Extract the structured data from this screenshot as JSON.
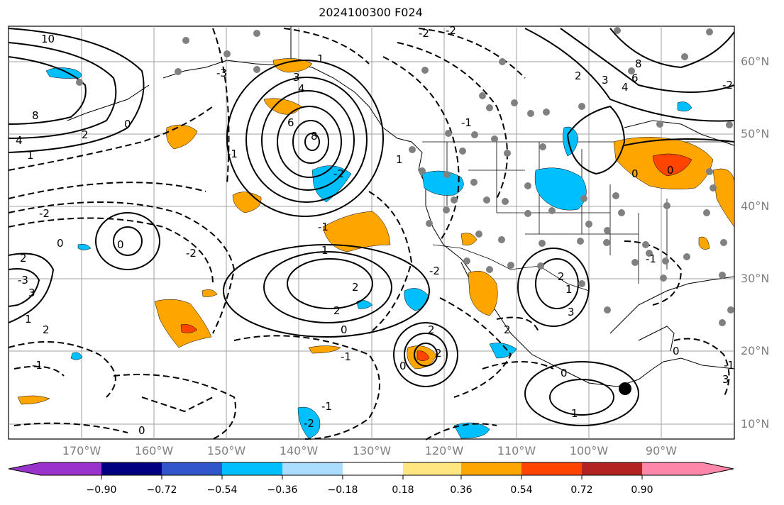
{
  "title": "2024100300 F024",
  "lat_labels": [
    "60°N",
    "50°N",
    "40°N",
    "30°N",
    "20°N",
    "10°N"
  ],
  "lon_labels": [
    "170°W",
    "160°W",
    "150°W",
    "140°W",
    "130°W",
    "120°W",
    "110°W",
    "100°W",
    "90°W"
  ],
  "colorbar": {
    "ticks": [
      "−0.90",
      "−0.72",
      "−0.54",
      "−0.36",
      "−0.18",
      "0.18",
      "0.36",
      "0.54",
      "0.72",
      "0.90"
    ],
    "colors": [
      "#9933cc",
      "#000080",
      "#3355cc",
      "#00bfff",
      "#aaddff",
      "#ffffff",
      "#ffe680",
      "#ffa500",
      "#ff4500",
      "#b22222",
      "#ff88aa"
    ]
  },
  "contour_labels": [
    "10",
    "8",
    "4",
    "2",
    "1",
    "0",
    "-2",
    "-3",
    "-1",
    "8",
    "6",
    "4",
    "3",
    "1",
    "-2",
    "-1",
    "3",
    "-3",
    "2",
    "0",
    "-1",
    "1",
    "-2",
    "0",
    "2",
    "0",
    "2",
    "1",
    "-1",
    "0",
    "2",
    "-2",
    "2",
    "0",
    "1",
    "-1",
    "-2",
    "0",
    "8",
    "6",
    "4",
    "3",
    "2",
    "-2",
    "0",
    "0",
    "-1",
    "1",
    "-2",
    "-2",
    "-1",
    "2",
    "3",
    "2",
    "1",
    "-1",
    "0",
    "3",
    "2"
  ],
  "colors": {
    "land_shade": "#f7f7f7",
    "contour": "#000000",
    "grid": "#a0a0a0",
    "dots": "#808080"
  }
}
